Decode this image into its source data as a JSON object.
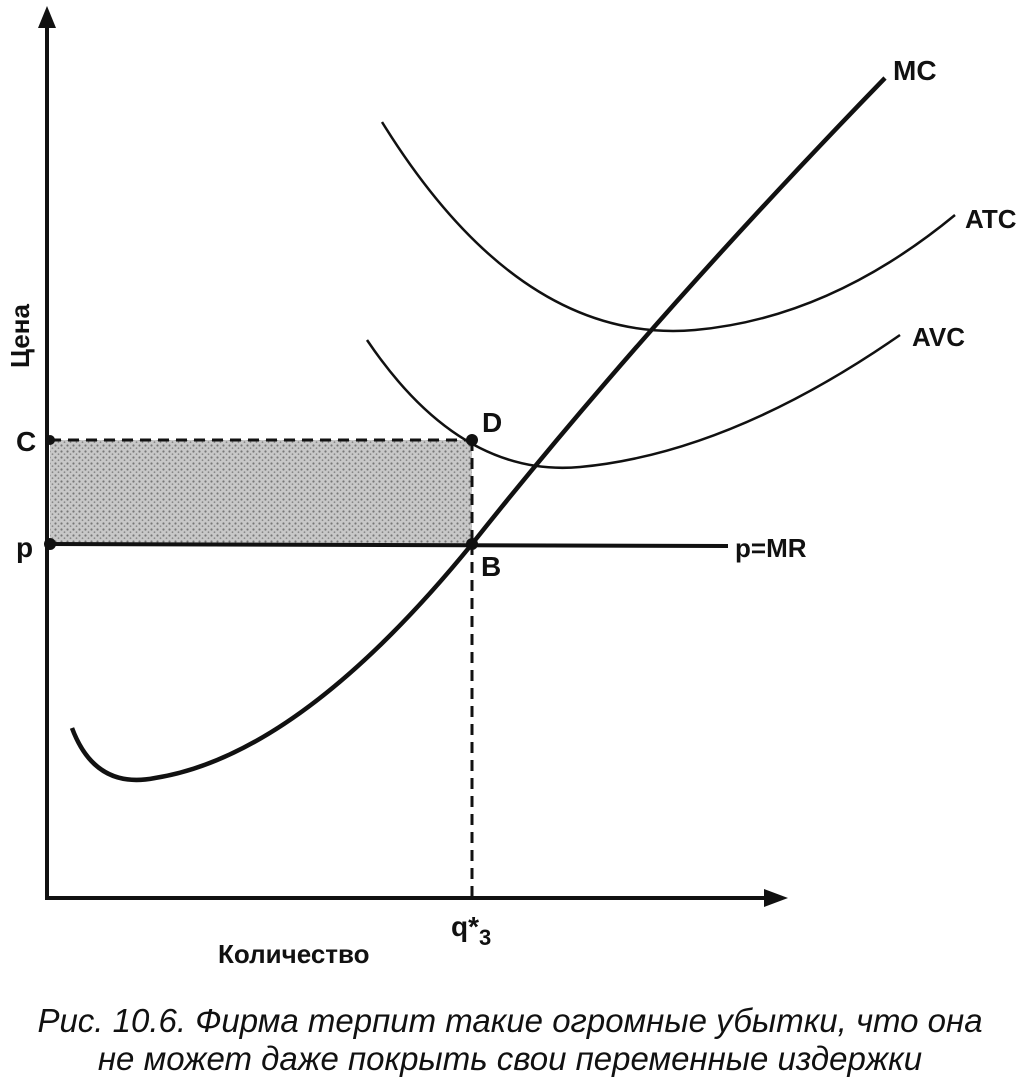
{
  "chart_data": {
    "type": "line",
    "title": "",
    "xlabel": "Количество",
    "ylabel": "Цена",
    "series": [
      {
        "name": "MC"
      },
      {
        "name": "ATC"
      },
      {
        "name": "AVC"
      },
      {
        "name": "p=MR"
      }
    ],
    "price_labels": {
      "c": "C",
      "p": "p"
    },
    "points": {
      "d": "D",
      "b": "B"
    },
    "quantity_label": {
      "base": "q*",
      "sub": "3"
    },
    "shaded_area": "loss rectangle between C and p up to q*3",
    "colors": {
      "ink": "#111111",
      "shade": "#9a9a9a"
    }
  },
  "caption": {
    "line1": "Рис. 10.6. Фирма терпит такие огромные убытки, что она",
    "line2": "не может даже покрыть свои переменные издержки"
  }
}
